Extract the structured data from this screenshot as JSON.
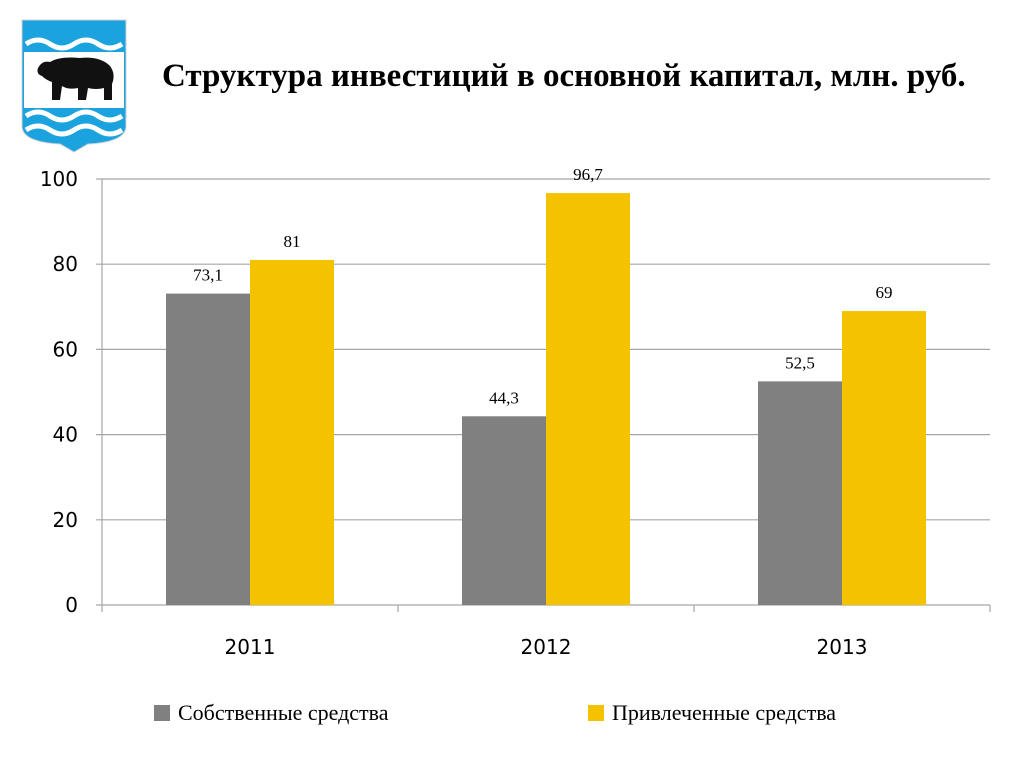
{
  "header": {
    "title": "Структура инвестиций в основной капитал, млн. руб.",
    "emblem_icon": "bear-coat-of-arms-icon"
  },
  "colors": {
    "series_own": "#808080",
    "series_attracted": "#F5C200",
    "grid": "#A6A6A6",
    "emblem_blue": "#1BA3DF"
  },
  "chart_data": {
    "type": "bar",
    "title": "Структура инвестиций в основной капитал, млн. руб.",
    "categories": [
      "2011",
      "2012",
      "2013"
    ],
    "series": [
      {
        "name": "Собственные средства",
        "values": [
          73.1,
          44.3,
          52.5
        ],
        "labels": [
          "73,1",
          "44,3",
          "52,5"
        ]
      },
      {
        "name": "Привлеченные средства",
        "values": [
          81,
          96.7,
          69
        ],
        "labels": [
          "81",
          "96,7",
          "69"
        ]
      }
    ],
    "ylim": [
      0,
      100
    ],
    "yticks": [
      0,
      20,
      40,
      60,
      80,
      100
    ],
    "grid": true,
    "legend": "bottom",
    "xlabel": "",
    "ylabel": ""
  }
}
